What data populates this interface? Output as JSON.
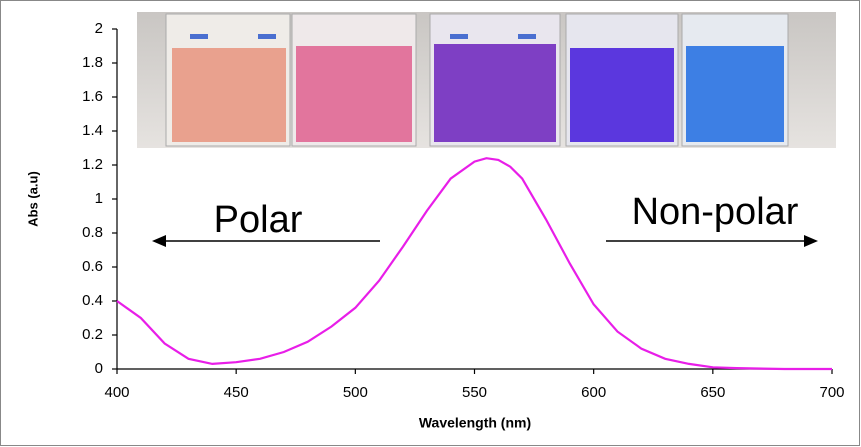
{
  "chart_data": {
    "type": "line",
    "xlabel": "Wavelength (nm)",
    "ylabel": "Abs (a.u)",
    "x": [
      400,
      410,
      420,
      430,
      440,
      450,
      460,
      470,
      480,
      490,
      500,
      510,
      520,
      530,
      540,
      550,
      555,
      560,
      565,
      570,
      580,
      590,
      600,
      610,
      620,
      630,
      640,
      650,
      660,
      680,
      700
    ],
    "series": [
      {
        "color": "#e81ee8",
        "values": [
          0.4,
          0.3,
          0.15,
          0.06,
          0.03,
          0.04,
          0.06,
          0.1,
          0.16,
          0.25,
          0.36,
          0.52,
          0.72,
          0.93,
          1.12,
          1.22,
          1.24,
          1.23,
          1.19,
          1.12,
          0.88,
          0.62,
          0.38,
          0.22,
          0.12,
          0.06,
          0.03,
          0.01,
          0.005,
          0,
          0
        ]
      }
    ],
    "xlim": [
      400,
      700
    ],
    "xticks": [
      400,
      450,
      500,
      550,
      600,
      650,
      700
    ],
    "ylim": [
      0,
      2
    ],
    "yticks": [
      0,
      0.2,
      0.4,
      0.6,
      0.8,
      1,
      1.2,
      1.4,
      1.6,
      1.8,
      2
    ],
    "annotations": [
      "Polar",
      "Non-polar"
    ]
  }
}
